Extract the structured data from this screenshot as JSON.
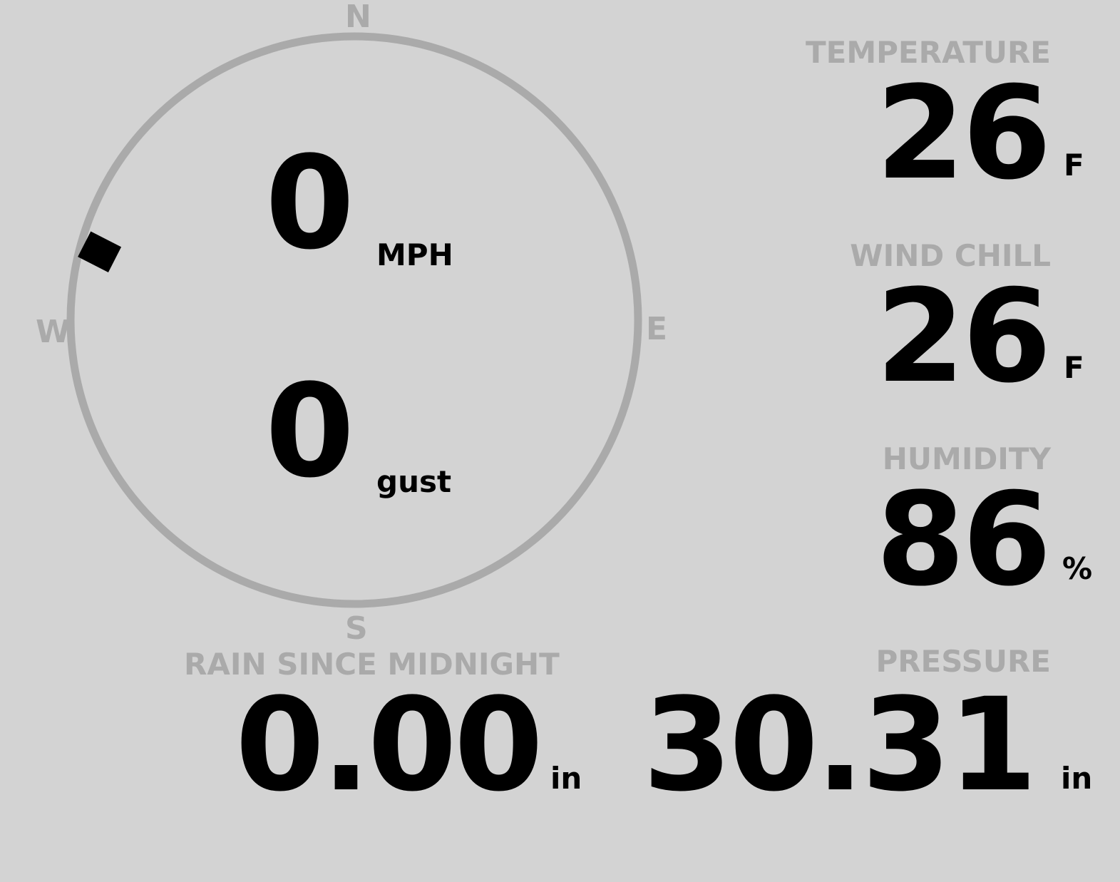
{
  "compass": {
    "north": "N",
    "east": "E",
    "south": "S",
    "west": "W",
    "wind_direction_deg": 285,
    "ring_color": "#aaaaaa",
    "marker_color": "#000000"
  },
  "wind": {
    "speed": "0",
    "speed_unit": "MPH",
    "gust": "0",
    "gust_unit": "gust"
  },
  "temperature": {
    "label": "TEMPERATURE",
    "value": "26",
    "unit": "F"
  },
  "wind_chill": {
    "label": "WIND CHILL",
    "value": "26",
    "unit": "F"
  },
  "humidity": {
    "label": "HUMIDITY",
    "value": "86",
    "unit": "%"
  },
  "rain": {
    "label": "RAIN SINCE MIDNIGHT",
    "value": "0.00",
    "unit": "in"
  },
  "pressure": {
    "label": "PRESSURE",
    "value": "30.31",
    "unit": "in"
  },
  "colors": {
    "background": "#d3d3d3",
    "label": "#aaaaaa",
    "value": "#000000"
  }
}
